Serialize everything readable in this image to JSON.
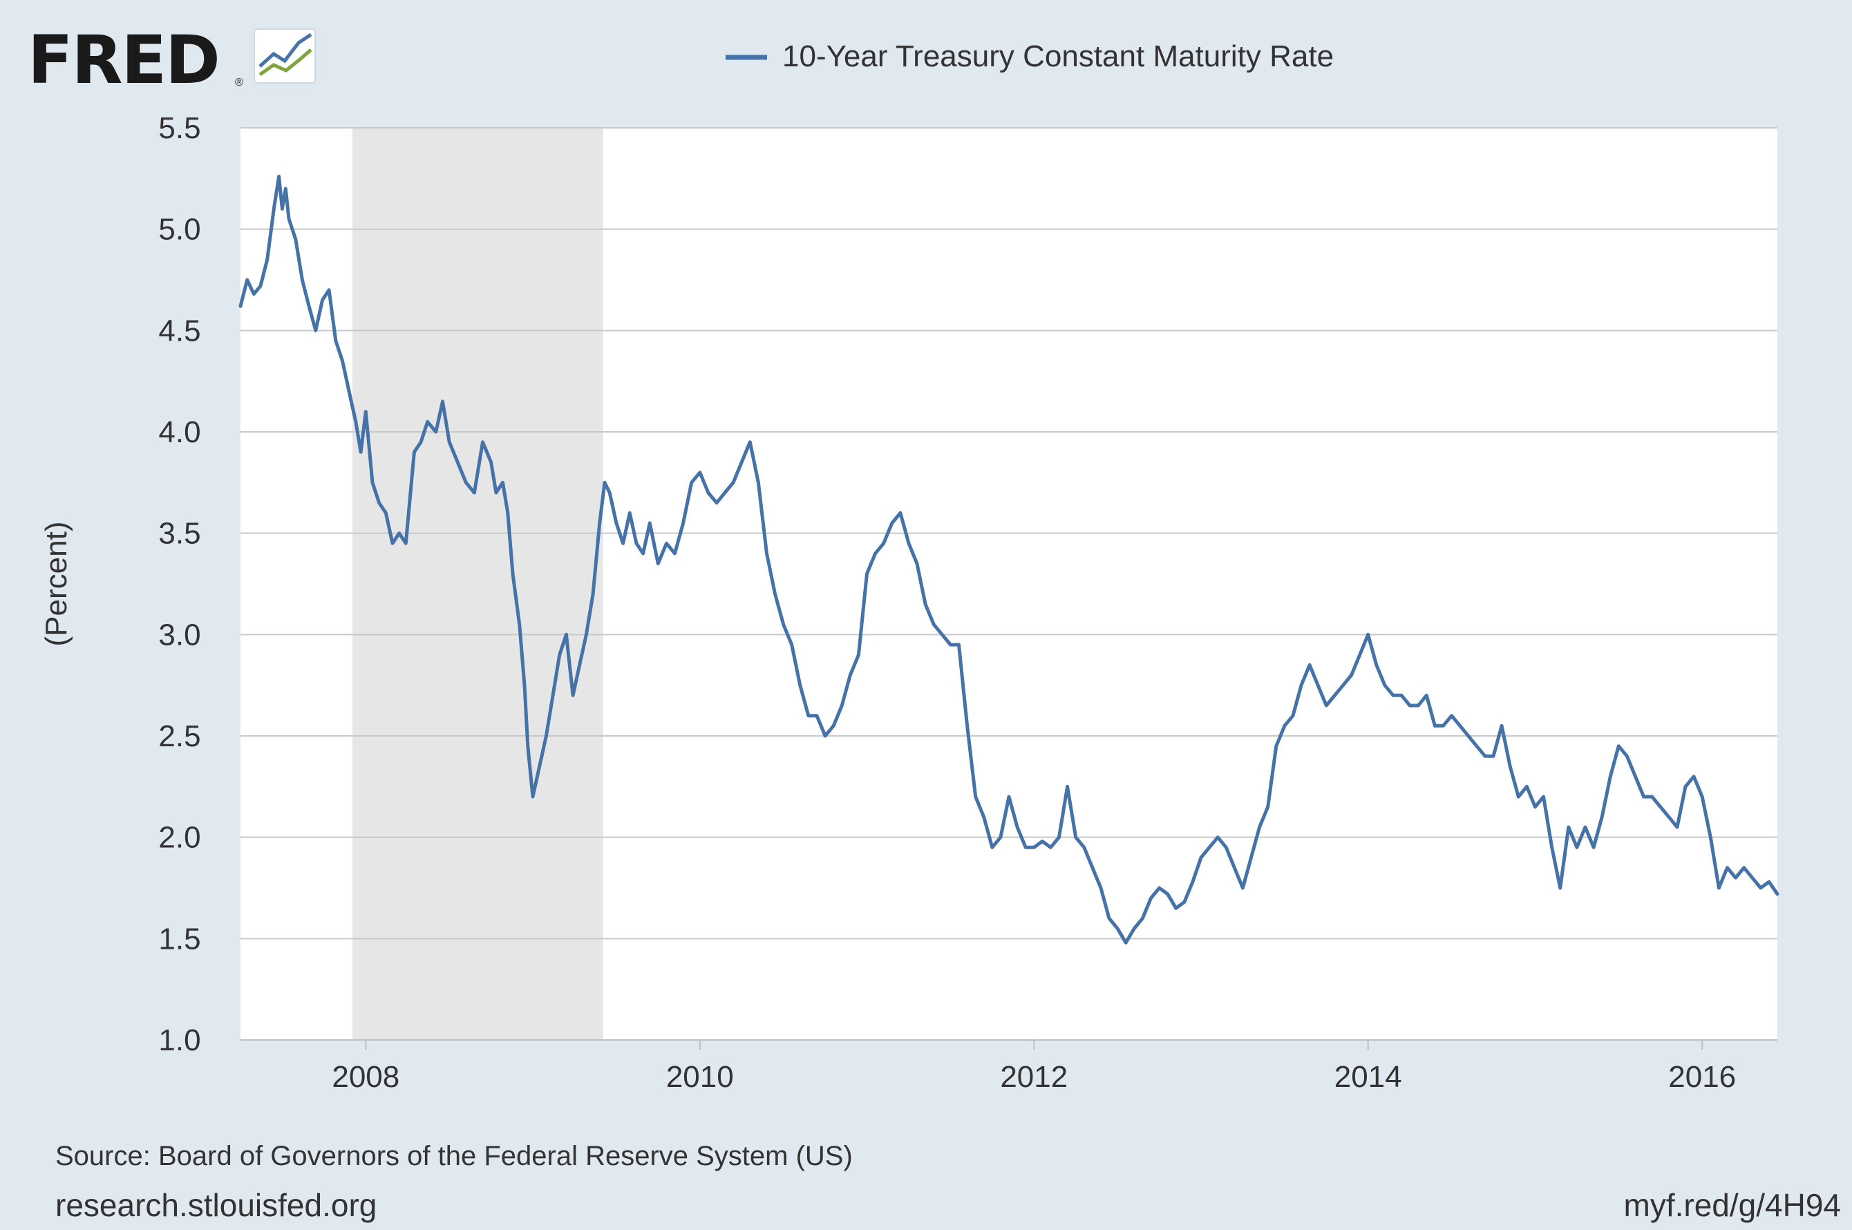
{
  "logo": {
    "text": "FRED",
    "registered_mark": "®",
    "icon": "fred-chart-logo-icon"
  },
  "legend": {
    "series_name": "10-Year Treasury Constant Maturity Rate",
    "placement": "top-center"
  },
  "source": "Source: Board of Governors of the Federal Reserve System (US)",
  "footer": {
    "left": "research.stlouisfed.org",
    "right": "myf.red/g/4H94"
  },
  "colors": {
    "background": "#e1e9f0",
    "plot_background": "#ffffff",
    "series": "#4572a7",
    "recession_shade": "#e6e6e6",
    "grid": "#c8c8c8",
    "text": "#333333"
  },
  "chart_data": {
    "type": "line",
    "title": "",
    "ylabel": "(Percent)",
    "xlabel": "",
    "ylim": [
      1.0,
      5.5
    ],
    "xlim": [
      2007.25,
      2016.45
    ],
    "yticks": [
      "1.0",
      "1.5",
      "2.0",
      "2.5",
      "3.0",
      "3.5",
      "4.0",
      "4.5",
      "5.0",
      "5.5"
    ],
    "xticks": [
      "2008",
      "2010",
      "2012",
      "2014",
      "2016"
    ],
    "grid": true,
    "recession_periods": [
      [
        2007.92,
        2009.42
      ]
    ],
    "series": [
      {
        "name": "10-Year Treasury Constant Maturity Rate",
        "x": [
          2007.25,
          2007.29,
          2007.33,
          2007.37,
          2007.41,
          2007.45,
          2007.48,
          2007.5,
          2007.52,
          2007.54,
          2007.58,
          2007.62,
          2007.66,
          2007.7,
          2007.74,
          2007.78,
          2007.82,
          2007.86,
          2007.9,
          2007.94,
          2007.97,
          2008.0,
          2008.04,
          2008.08,
          2008.12,
          2008.16,
          2008.2,
          2008.24,
          2008.29,
          2008.33,
          2008.37,
          2008.42,
          2008.46,
          2008.5,
          2008.55,
          2008.6,
          2008.65,
          2008.7,
          2008.75,
          2008.78,
          2008.82,
          2008.85,
          2008.88,
          2008.92,
          2008.95,
          2008.97,
          2009.0,
          2009.04,
          2009.08,
          2009.12,
          2009.16,
          2009.2,
          2009.24,
          2009.28,
          2009.32,
          2009.36,
          2009.4,
          2009.43,
          2009.46,
          2009.5,
          2009.54,
          2009.58,
          2009.62,
          2009.66,
          2009.7,
          2009.75,
          2009.8,
          2009.85,
          2009.9,
          2009.95,
          2010.0,
          2010.05,
          2010.1,
          2010.15,
          2010.2,
          2010.25,
          2010.3,
          2010.35,
          2010.4,
          2010.45,
          2010.5,
          2010.55,
          2010.6,
          2010.65,
          2010.7,
          2010.75,
          2010.8,
          2010.85,
          2010.9,
          2010.95,
          2011.0,
          2011.05,
          2011.1,
          2011.15,
          2011.2,
          2011.25,
          2011.3,
          2011.35,
          2011.4,
          2011.45,
          2011.5,
          2011.55,
          2011.6,
          2011.65,
          2011.7,
          2011.75,
          2011.8,
          2011.85,
          2011.9,
          2011.95,
          2012.0,
          2012.05,
          2012.1,
          2012.15,
          2012.2,
          2012.25,
          2012.3,
          2012.35,
          2012.4,
          2012.45,
          2012.5,
          2012.55,
          2012.6,
          2012.65,
          2012.7,
          2012.75,
          2012.8,
          2012.85,
          2012.9,
          2012.95,
          2013.0,
          2013.05,
          2013.1,
          2013.15,
          2013.2,
          2013.25,
          2013.3,
          2013.35,
          2013.4,
          2013.45,
          2013.5,
          2013.55,
          2013.6,
          2013.65,
          2013.7,
          2013.75,
          2013.8,
          2013.85,
          2013.9,
          2013.95,
          2014.0,
          2014.05,
          2014.1,
          2014.15,
          2014.2,
          2014.25,
          2014.3,
          2014.35,
          2014.4,
          2014.45,
          2014.5,
          2014.55,
          2014.6,
          2014.65,
          2014.7,
          2014.75,
          2014.8,
          2014.85,
          2014.9,
          2014.95,
          2015.0,
          2015.05,
          2015.1,
          2015.15,
          2015.2,
          2015.25,
          2015.3,
          2015.35,
          2015.4,
          2015.45,
          2015.5,
          2015.55,
          2015.6,
          2015.65,
          2015.7,
          2015.75,
          2015.8,
          2015.85,
          2015.9,
          2015.95,
          2016.0,
          2016.05,
          2016.1,
          2016.15,
          2016.2,
          2016.25,
          2016.3,
          2016.35,
          2016.4,
          2016.45
        ],
        "y": [
          4.62,
          4.75,
          4.68,
          4.72,
          4.85,
          5.1,
          5.26,
          5.1,
          5.2,
          5.05,
          4.95,
          4.75,
          4.62,
          4.5,
          4.65,
          4.7,
          4.45,
          4.35,
          4.2,
          4.05,
          3.9,
          4.1,
          3.75,
          3.65,
          3.6,
          3.45,
          3.5,
          3.45,
          3.9,
          3.95,
          4.05,
          4.0,
          4.15,
          3.95,
          3.85,
          3.75,
          3.7,
          3.95,
          3.85,
          3.7,
          3.75,
          3.6,
          3.3,
          3.05,
          2.75,
          2.45,
          2.2,
          2.35,
          2.5,
          2.7,
          2.9,
          3.0,
          2.7,
          2.85,
          3.0,
          3.2,
          3.55,
          3.75,
          3.7,
          3.55,
          3.45,
          3.6,
          3.45,
          3.4,
          3.55,
          3.35,
          3.45,
          3.4,
          3.55,
          3.75,
          3.8,
          3.7,
          3.65,
          3.7,
          3.75,
          3.85,
          3.95,
          3.75,
          3.4,
          3.2,
          3.05,
          2.95,
          2.75,
          2.6,
          2.6,
          2.5,
          2.55,
          2.65,
          2.8,
          2.9,
          3.3,
          3.4,
          3.45,
          3.55,
          3.6,
          3.45,
          3.35,
          3.15,
          3.05,
          3.0,
          2.95,
          2.95,
          2.55,
          2.2,
          2.1,
          1.95,
          2.0,
          2.2,
          2.05,
          1.95,
          1.95,
          1.98,
          1.95,
          2.0,
          2.25,
          2.0,
          1.95,
          1.85,
          1.75,
          1.6,
          1.55,
          1.48,
          1.55,
          1.6,
          1.7,
          1.75,
          1.72,
          1.65,
          1.68,
          1.78,
          1.9,
          1.95,
          2.0,
          1.95,
          1.85,
          1.75,
          1.9,
          2.05,
          2.15,
          2.45,
          2.55,
          2.6,
          2.75,
          2.85,
          2.75,
          2.65,
          2.7,
          2.75,
          2.8,
          2.9,
          3.0,
          2.85,
          2.75,
          2.7,
          2.7,
          2.65,
          2.65,
          2.7,
          2.55,
          2.55,
          2.6,
          2.55,
          2.5,
          2.45,
          2.4,
          2.4,
          2.55,
          2.35,
          2.2,
          2.25,
          2.15,
          2.2,
          1.95,
          1.75,
          2.05,
          1.95,
          2.05,
          1.95,
          2.1,
          2.3,
          2.45,
          2.4,
          2.3,
          2.2,
          2.2,
          2.15,
          2.1,
          2.05,
          2.25,
          2.3,
          2.2,
          2.0,
          1.75,
          1.85,
          1.8,
          1.85,
          1.8,
          1.75,
          1.78,
          1.72
        ]
      }
    ]
  }
}
